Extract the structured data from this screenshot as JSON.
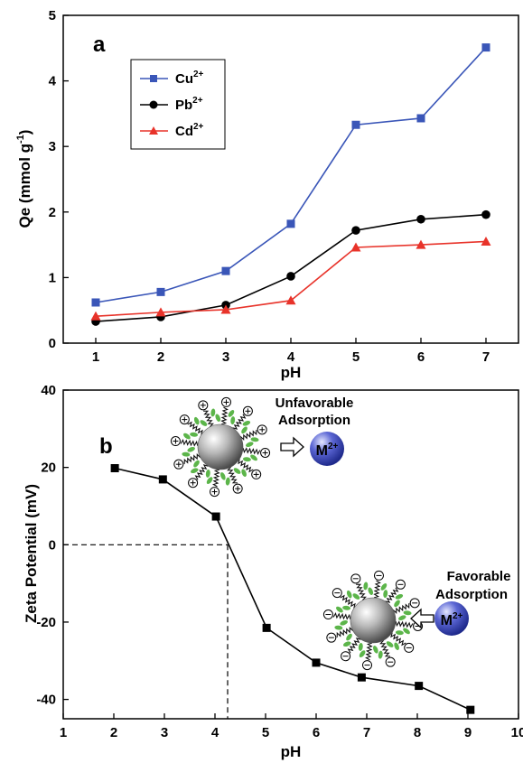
{
  "chart_data": [
    {
      "type": "line",
      "panel_label": "a",
      "xlabel": "pH",
      "ylabel": "Qe (mmol g-1)",
      "ylabel_main": "Qe (mmol g",
      "ylabel_sup": "-1",
      "ylabel_close": ")",
      "xlim": [
        0.5,
        7.5
      ],
      "ylim": [
        0,
        5
      ],
      "x_ticks": [
        "1",
        "2",
        "3",
        "4",
        "5",
        "6",
        "7"
      ],
      "y_ticks": [
        "0",
        "1",
        "2",
        "3",
        "4",
        "5"
      ],
      "x": [
        1,
        2,
        3,
        4,
        5,
        6,
        7
      ],
      "legend_position": "top-left",
      "series": [
        {
          "name": "Cu2+",
          "name_base": "Cu",
          "name_sup": "2+",
          "color": "#3a56b8",
          "marker": "square",
          "values": [
            0.62,
            0.78,
            1.1,
            1.82,
            3.33,
            3.43,
            4.51
          ]
        },
        {
          "name": "Pb2+",
          "name_base": "Pb",
          "name_sup": "2+",
          "color": "#000000",
          "marker": "circle",
          "values": [
            0.33,
            0.4,
            0.58,
            1.02,
            1.72,
            1.89,
            1.96
          ]
        },
        {
          "name": "Cd2+",
          "name_base": "Cd",
          "name_sup": "2+",
          "color": "#e8332a",
          "marker": "triangle",
          "values": [
            0.41,
            0.47,
            0.51,
            0.65,
            1.46,
            1.5,
            1.55
          ]
        }
      ]
    },
    {
      "type": "line",
      "panel_label": "b",
      "xlabel": "pH",
      "ylabel": "Zeta Potential (mV)",
      "xlim": [
        1,
        10
      ],
      "ylim": [
        -45,
        40
      ],
      "x_ticks": [
        "1",
        "2",
        "3",
        "4",
        "5",
        "6",
        "7",
        "8",
        "9",
        "10"
      ],
      "y_ticks": [
        "-40",
        "-20",
        "0",
        "20",
        "40"
      ],
      "isoelectric_point": 4.25,
      "series": [
        {
          "name": "",
          "color": "#000000",
          "marker": "square",
          "x": [
            2.02,
            2.97,
            4.02,
            5.02,
            6.0,
            6.9,
            8.03,
            9.05
          ],
          "values": [
            19.8,
            16.9,
            7.3,
            -21.5,
            -30.5,
            -34.3,
            -36.5,
            -42.7
          ]
        }
      ],
      "annotations": {
        "unfavorable_line1": "Unfavorable",
        "unfavorable_line2": "Adsorption",
        "favorable_line1": "Favorable",
        "favorable_line2": "Adsorption",
        "ion_base": "M",
        "ion_sup": "2+"
      }
    }
  ]
}
